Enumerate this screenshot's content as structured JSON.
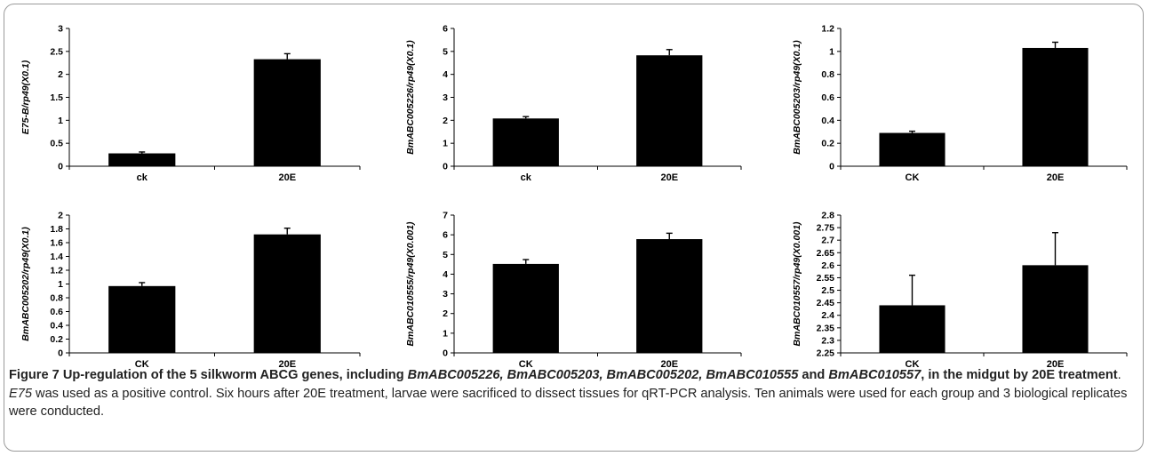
{
  "chart_data": [
    {
      "type": "bar",
      "categories": [
        "ck",
        "20E"
      ],
      "values": [
        0.28,
        2.33
      ],
      "errors": [
        0.03,
        0.12
      ],
      "ylabel": "E75-B/rp49(X0.1)",
      "ylim": [
        0,
        3
      ],
      "yticks": [
        "0",
        "0.5",
        "1",
        "1.5",
        "2",
        "2.5",
        "3"
      ],
      "ytick_values": [
        0,
        0.5,
        1,
        1.5,
        2,
        2.5,
        3
      ]
    },
    {
      "type": "bar",
      "categories": [
        "ck",
        "20E"
      ],
      "values": [
        2.08,
        4.83
      ],
      "errors": [
        0.08,
        0.25
      ],
      "ylabel": "BmABC005226/rp49(X0.1)",
      "ylim": [
        0,
        6
      ],
      "yticks": [
        "0",
        "1",
        "2",
        "3",
        "4",
        "5",
        "6"
      ],
      "ytick_values": [
        0,
        1,
        2,
        3,
        4,
        5,
        6
      ]
    },
    {
      "type": "bar",
      "categories": [
        "CK",
        "20E"
      ],
      "values": [
        0.29,
        1.03
      ],
      "errors": [
        0.015,
        0.05
      ],
      "ylabel": "BmABC005203/rp49(X0.1)",
      "ylim": [
        0,
        1.2
      ],
      "yticks": [
        "0",
        "0.2",
        "0.4",
        "0.6",
        "0.8",
        "1",
        "1.2"
      ],
      "ytick_values": [
        0,
        0.2,
        0.4,
        0.6,
        0.8,
        1,
        1.2
      ]
    },
    {
      "type": "bar",
      "categories": [
        "CK",
        "20E"
      ],
      "values": [
        0.97,
        1.72
      ],
      "errors": [
        0.05,
        0.09
      ],
      "ylabel": "BmABC005202/rp49(X0.1)",
      "ylim": [
        0,
        2
      ],
      "yticks": [
        "0",
        "0.2",
        "0.4",
        "0.6",
        "0.8",
        "1",
        "1.2",
        "1.4",
        "1.6",
        "1.8",
        "2"
      ],
      "ytick_values": [
        0,
        0.2,
        0.4,
        0.6,
        0.8,
        1,
        1.2,
        1.4,
        1.6,
        1.8,
        2
      ]
    },
    {
      "type": "bar",
      "categories": [
        "CK",
        "20E"
      ],
      "values": [
        4.52,
        5.78
      ],
      "errors": [
        0.22,
        0.3
      ],
      "ylabel": "BmABC010555/rp49(X0.001)",
      "ylim": [
        0,
        7
      ],
      "yticks": [
        "0",
        "1",
        "2",
        "3",
        "4",
        "5",
        "6",
        "7"
      ],
      "ytick_values": [
        0,
        1,
        2,
        3,
        4,
        5,
        6,
        7
      ]
    },
    {
      "type": "bar",
      "categories": [
        "CK",
        "20E"
      ],
      "values": [
        2.44,
        2.6
      ],
      "errors": [
        0.12,
        0.13
      ],
      "ylabel": "BmABC010557/rp49(X0.001)",
      "ylim": [
        2.25,
        2.8
      ],
      "yticks": [
        "2.25",
        "2.3",
        "2.35",
        "2.4",
        "2.45",
        "2.5",
        "2.55",
        "2.6",
        "2.65",
        "2.7",
        "2.75",
        "2.8"
      ],
      "ytick_values": [
        2.25,
        2.3,
        2.35,
        2.4,
        2.45,
        2.5,
        2.55,
        2.6,
        2.65,
        2.7,
        2.75,
        2.8
      ]
    }
  ],
  "caption": {
    "fig_label": "Figure 7",
    "title_1": " Up-regulation of the 5 silkworm ABCG genes, including ",
    "genes_1": "BmABC005226, BmABC005203, BmABC005202, BmABC010555",
    "and": " and ",
    "genes_2": "BmABC010557",
    "title_2": ", in the midgut by 20E treatment",
    "period": ". ",
    "e75": "E75",
    "body": " was used as a positive control. Six hours after 20E treatment, larvae were sacrificed to dissect tissues for qRT-PCR analysis. Ten animals were used for each group and 3 biological replicates were conducted."
  },
  "colors": {
    "bar": "#000000",
    "axis": "#000000",
    "caption_text": "#222222"
  }
}
